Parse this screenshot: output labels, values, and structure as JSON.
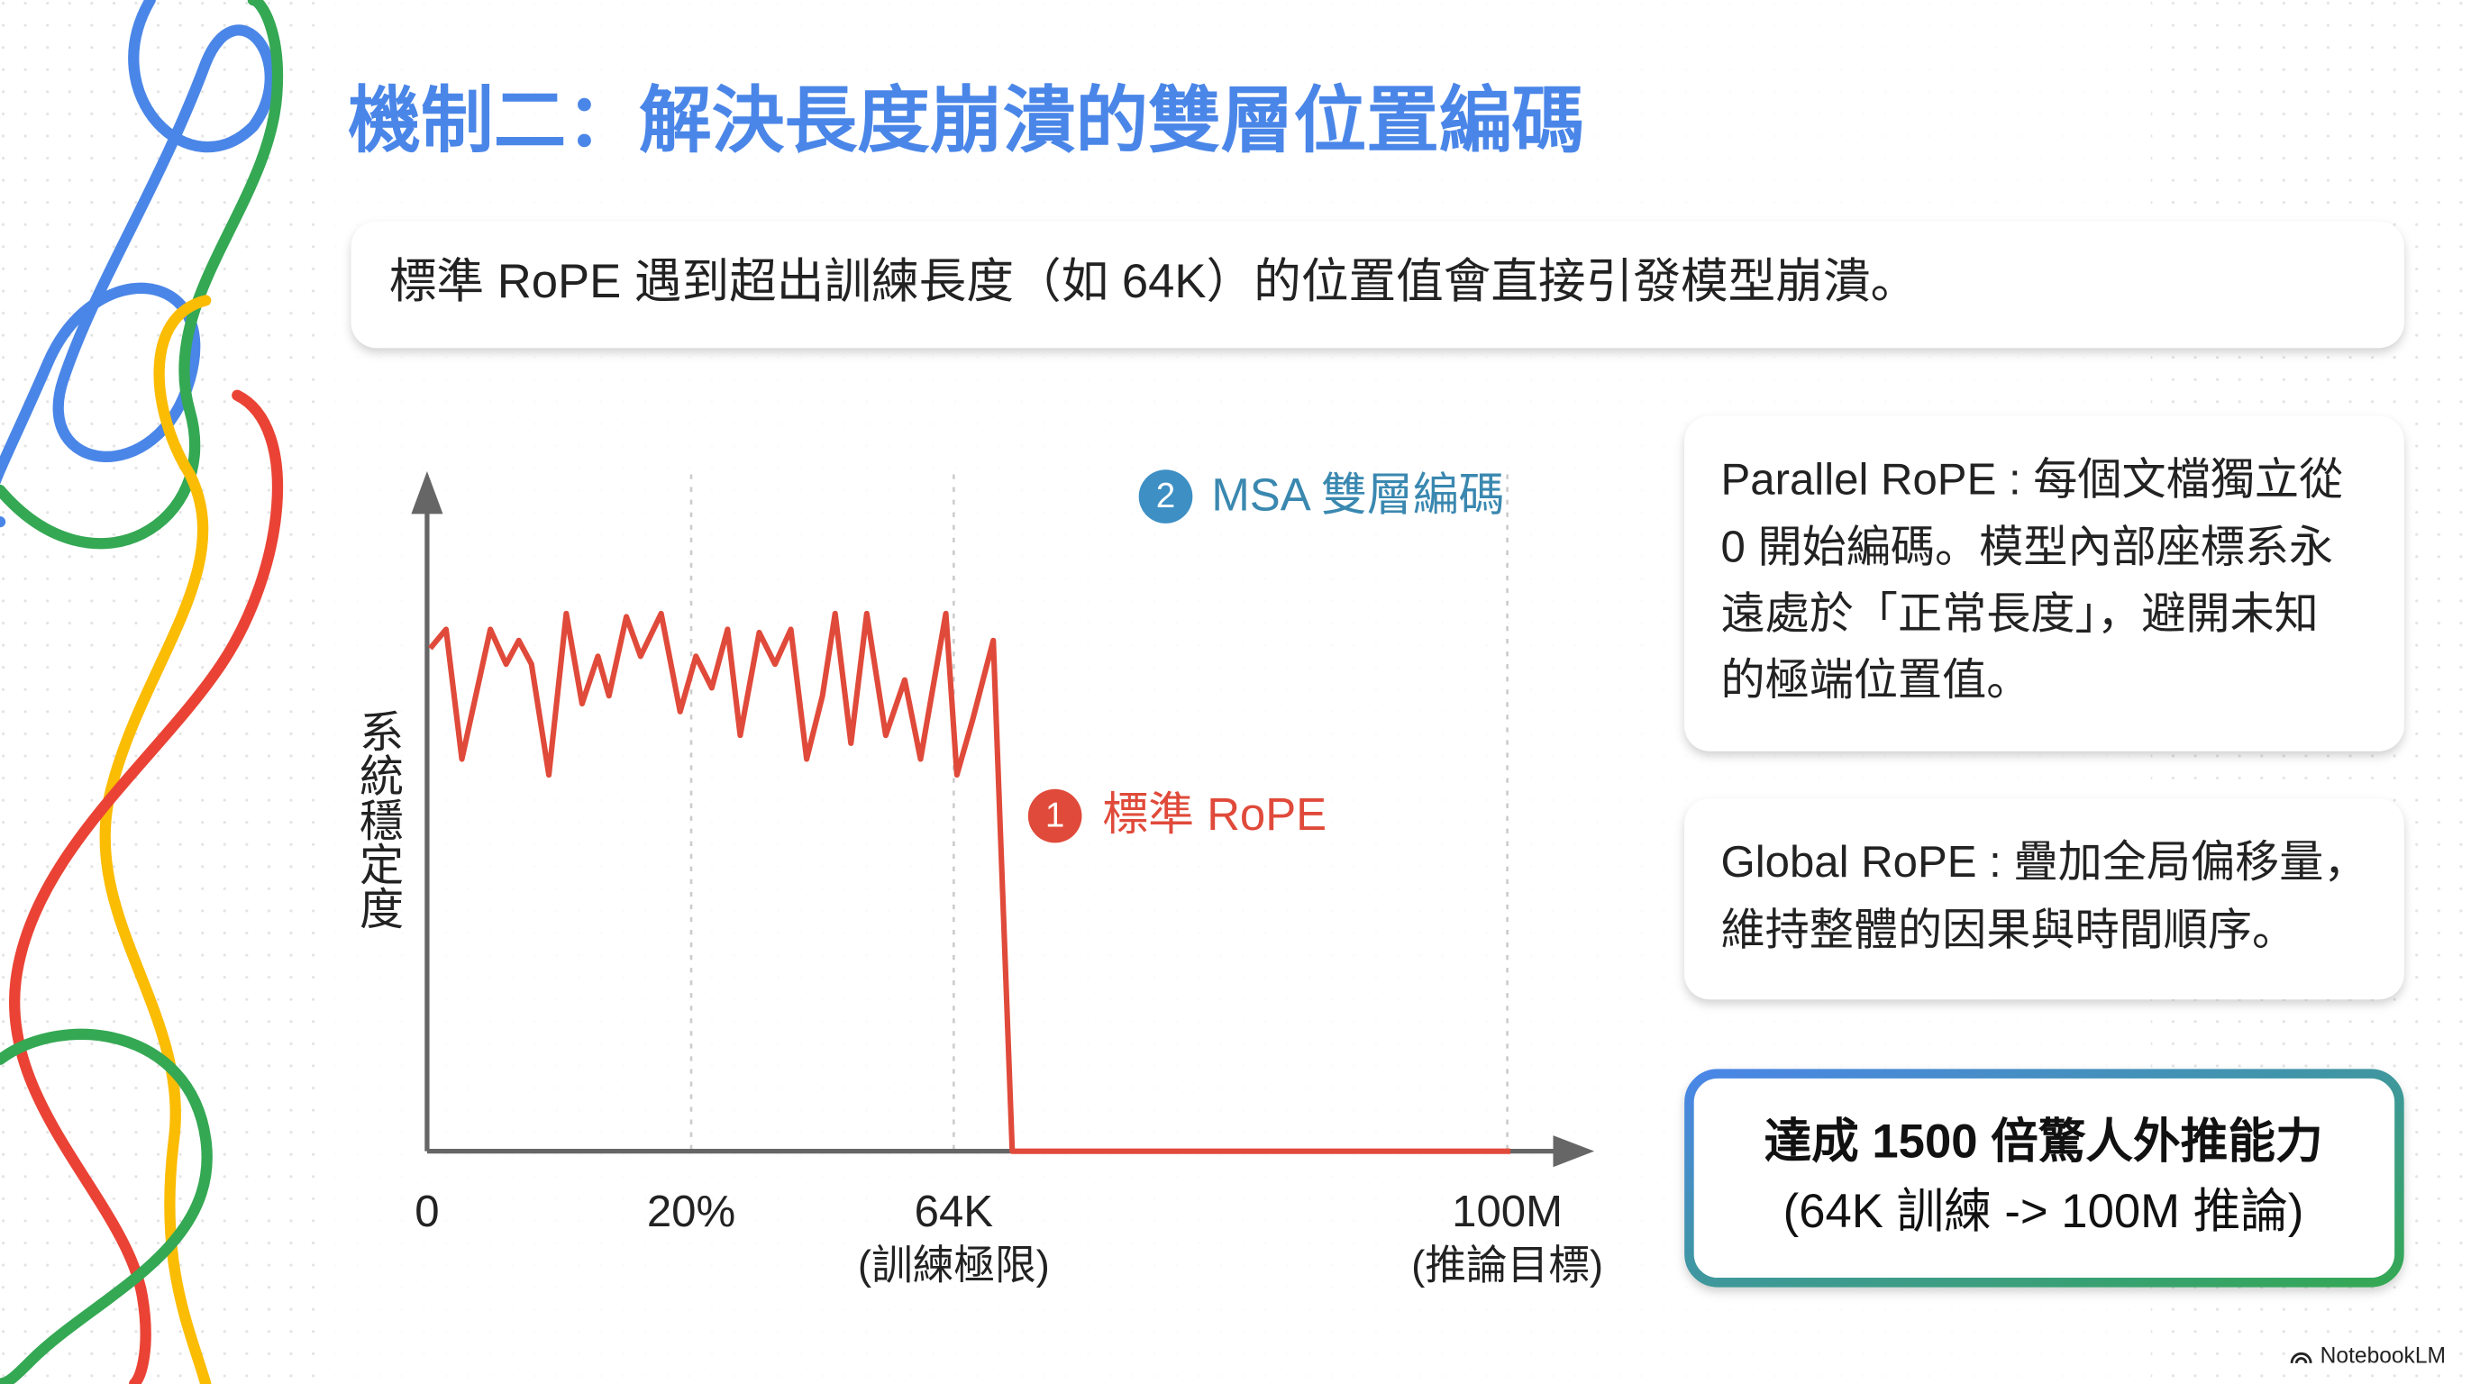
{
  "header": {
    "title": "機制二：解決長度崩潰的雙層位置編碼",
    "subtitle": "標準 RoPE 遇到超出訓練長度（如 64K）的位置值會直接引發模型崩潰。"
  },
  "figure": {
    "y_axis_label": "系統穩定度",
    "x_labels": [
      "0",
      "20%",
      "64K",
      "100M"
    ],
    "x_sublabels": [
      "(訓練極限)",
      "(推論目標)"
    ],
    "lines": [
      {
        "number": "2",
        "name": "MSA 雙層編碼"
      },
      {
        "number": "1",
        "name": "標準 RoPE"
      }
    ]
  },
  "panels": [
    {
      "lines": [
        "Parallel RoPE : 每個文檔獨立從",
        "0 開始編碼。模型內部座標系永",
        "遠處於「正常長度」，避開未知",
        "的極端位置值。"
      ]
    },
    {
      "lines": [
        "Global RoPE : 疊加全局偏移量，",
        "維持整體的因果與時間順序。"
      ]
    }
  ],
  "highlight": {
    "title": "達成 1500 倍驚人外推能力",
    "subtitle": "(64K 訓練 -> 100M 推論)"
  },
  "brand": "NotebookLM"
}
